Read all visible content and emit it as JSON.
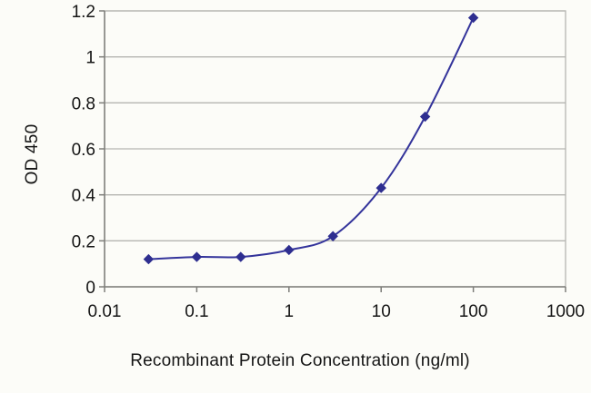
{
  "chart_data": {
    "type": "line",
    "title": "",
    "xlabel": "Recombinant Protein Concentration (ng/ml)",
    "ylabel": "OD 450",
    "x": [
      0.03,
      0.1,
      0.3,
      1,
      3,
      10,
      30,
      100
    ],
    "y": [
      0.12,
      0.13,
      0.13,
      0.16,
      0.22,
      0.43,
      0.74,
      1.17
    ],
    "x_scale": "log",
    "y_scale": "linear",
    "xlim": [
      0.01,
      1000
    ],
    "ylim": [
      0,
      1.2
    ],
    "x_ticks": [
      0.01,
      0.1,
      1,
      10,
      100,
      1000
    ],
    "x_tick_labels": [
      "0.01",
      "0.1",
      "1",
      "10",
      "100",
      "1000"
    ],
    "y_ticks": [
      0,
      0.2,
      0.4,
      0.6,
      0.8,
      1,
      1.2
    ],
    "y_tick_labels": [
      "0",
      "0.2",
      "0.4",
      "0.6",
      "0.8",
      "1",
      "1.2"
    ],
    "grid": "horizontal",
    "legend": "none",
    "smooth": true,
    "line_color": "#34349b",
    "marker": "diamond",
    "marker_color": "#2e2e90",
    "gridline_color": "#b5b5b1",
    "axis_color": "#7e7e7a",
    "text_color": "#151515",
    "background_color": "#fcfcf8"
  }
}
